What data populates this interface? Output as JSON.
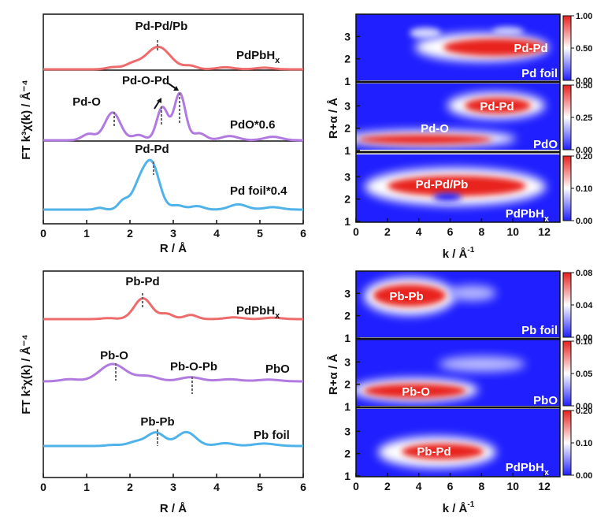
{
  "colors": {
    "pdpbhx": "#ee6b6b",
    "oxide": "#b07ae0",
    "foil": "#4fb3ea",
    "map_low": "#1f1fff",
    "map_mid": "#ffffff",
    "map_high": "#e8201e"
  },
  "chart_data": [
    {
      "id": "ft_pd",
      "type": "line",
      "xlabel": "R / Å",
      "ylabel": "FT k³χ(k) / Å⁻⁴",
      "xlim": [
        0,
        6
      ],
      "xticks": [
        0,
        1,
        2,
        3,
        4,
        5,
        6
      ],
      "series": [
        {
          "name": "PdPbHx",
          "color_key": "pdpbhx",
          "peaks": [
            [
              1.6,
              0.05,
              0.15
            ],
            [
              2.05,
              0.12,
              0.18
            ],
            [
              2.65,
              0.55,
              0.28
            ],
            [
              3.4,
              0.08,
              0.15
            ],
            [
              4.2,
              0.05,
              0.2
            ],
            [
              5.1,
              0.04,
              0.2
            ]
          ]
        },
        {
          "name": "PdO*0.6",
          "color_key": "oxide",
          "peaks": [
            [
              1.05,
              0.18,
              0.15
            ],
            [
              1.6,
              0.8,
              0.18
            ],
            [
              2.2,
              0.15,
              0.14
            ],
            [
              2.75,
              0.95,
              0.13
            ],
            [
              3.15,
              1.35,
              0.13
            ],
            [
              3.6,
              0.2,
              0.15
            ],
            [
              4.3,
              0.12,
              0.2
            ],
            [
              5.3,
              0.1,
              0.2
            ]
          ]
        },
        {
          "name": "Pd foil*0.4",
          "color_key": "foil",
          "peaks": [
            [
              1.3,
              0.05,
              0.1
            ],
            [
              1.85,
              0.25,
              0.12
            ],
            [
              2.2,
              0.6,
              0.16
            ],
            [
              2.5,
              1.3,
              0.18
            ],
            [
              3.1,
              0.12,
              0.15
            ],
            [
              3.55,
              0.1,
              0.15
            ],
            [
              4.5,
              0.15,
              0.2
            ],
            [
              5.3,
              0.07,
              0.2
            ]
          ]
        }
      ],
      "annotations": [
        {
          "text": "Pd-Pd/Pb",
          "x": 2.65
        },
        {
          "text": "Pd-O-Pd",
          "x": 2.9
        },
        {
          "text": "Pd-O",
          "x": 1.6
        },
        {
          "text": "Pd-Pd",
          "x": 2.5
        }
      ]
    },
    {
      "id": "ft_pb",
      "type": "line",
      "xlabel": "R / Å",
      "ylabel": "FT k³χ(k) / Å⁻⁴",
      "xlim": [
        0,
        6
      ],
      "xticks": [
        0,
        1,
        2,
        3,
        4,
        5,
        6
      ],
      "series": [
        {
          "name": "PdPbHx",
          "color_key": "pdpbhx",
          "peaks": [
            [
              1.5,
              0.03,
              0.15
            ],
            [
              2.3,
              0.6,
              0.2
            ],
            [
              2.85,
              0.15,
              0.15
            ],
            [
              3.4,
              0.12,
              0.15
            ],
            [
              4.4,
              0.05,
              0.2
            ],
            [
              5.3,
              0.04,
              0.2
            ]
          ]
        },
        {
          "name": "PbO",
          "color_key": "oxide",
          "peaks": [
            [
              0.6,
              0.06,
              0.2
            ],
            [
              1.6,
              0.5,
              0.3
            ],
            [
              2.4,
              0.15,
              0.25
            ],
            [
              3.4,
              0.12,
              0.25
            ],
            [
              4.3,
              0.06,
              0.25
            ],
            [
              5.2,
              0.05,
              0.25
            ]
          ]
        },
        {
          "name": "Pb foil",
          "color_key": "foil",
          "peaks": [
            [
              1.6,
              0.03,
              0.15
            ],
            [
              2.15,
              0.12,
              0.2
            ],
            [
              2.6,
              0.38,
              0.2
            ],
            [
              3.3,
              0.4,
              0.22
            ],
            [
              4.2,
              0.08,
              0.2
            ],
            [
              5.1,
              0.07,
              0.25
            ]
          ]
        }
      ],
      "annotations": [
        {
          "text": "Pb-Pd",
          "x": 2.3
        },
        {
          "text": "Pb-O",
          "x": 1.6
        },
        {
          "text": "Pb-O-Pb",
          "x": 3.4
        },
        {
          "text": "Pb-Pb",
          "x": 2.6
        }
      ]
    },
    {
      "id": "wt_pd",
      "type": "heatmap",
      "xlabel": "k / Å⁻¹",
      "ylabel": "R+α / Å",
      "xlim": [
        0,
        13
      ],
      "ylim": [
        1,
        4
      ],
      "xticks": [
        0,
        2,
        4,
        6,
        8,
        10,
        12
      ],
      "yticks": [
        1,
        2,
        3
      ],
      "panels": [
        {
          "label": "Pd foil",
          "cbar_ticks": [
            "0.00",
            "0.50",
            "1.00"
          ],
          "features": [
            {
              "text": "Pd-Pd",
              "k": 9.5,
              "r": 2.5
            }
          ]
        },
        {
          "label": "PdO",
          "cbar_ticks": [
            "0.00",
            "0.25",
            "0.50"
          ],
          "features": [
            {
              "text": "Pd-Pd",
              "k": 8.2,
              "r": 3.0
            },
            {
              "text": "Pd-O",
              "k": 4.3,
              "r": 1.7
            }
          ]
        },
        {
          "label": "PdPbHx",
          "cbar_ticks": [
            "0.00",
            "0.10",
            "0.20"
          ],
          "features": [
            {
              "text": "Pd-Pd/Pb",
              "k": 6.5,
              "r": 2.7
            }
          ]
        }
      ]
    },
    {
      "id": "wt_pb",
      "type": "heatmap",
      "xlabel": "k / Å⁻¹",
      "ylabel": "R+α / Å",
      "xlim": [
        0,
        13
      ],
      "ylim": [
        1,
        4
      ],
      "xticks": [
        0,
        2,
        4,
        6,
        8,
        10,
        12
      ],
      "yticks": [
        1,
        2,
        3
      ],
      "panels": [
        {
          "label": "Pb foil",
          "cbar_ticks": [
            "0.00",
            "0.04",
            "0.08"
          ],
          "features": [
            {
              "text": "Pb-Pb",
              "k": 3.3,
              "r": 2.8
            }
          ]
        },
        {
          "label": "PbO",
          "cbar_ticks": [
            "0.00",
            "0.05",
            "0.10"
          ],
          "features": [
            {
              "text": "Pb-O",
              "k": 4.2,
              "r": 1.7
            }
          ]
        },
        {
          "label": "PdPbHx",
          "cbar_ticks": [
            "0.00",
            "0.10",
            "0.20"
          ],
          "features": [
            {
              "text": "Pb-Pd",
              "k": 5.5,
              "r": 2.1
            }
          ]
        }
      ]
    }
  ]
}
